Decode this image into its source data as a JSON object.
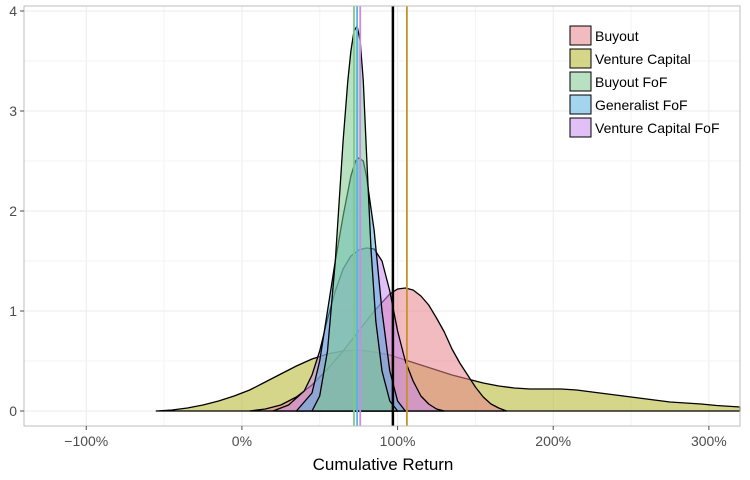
{
  "chart_data": {
    "type": "area",
    "title": "",
    "xlabel": "Cumulative Return",
    "ylabel": "",
    "xlim": [
      -1.4,
      3.2
    ],
    "ylim": [
      -0.15,
      4.05
    ],
    "x_ticks": [
      {
        "value": -1,
        "label": "−100%"
      },
      {
        "value": 0,
        "label": "0%"
      },
      {
        "value": 1,
        "label": "100%"
      },
      {
        "value": 2,
        "label": "200%"
      },
      {
        "value": 3,
        "label": "300%"
      }
    ],
    "y_ticks": [
      {
        "value": 0,
        "label": "0"
      },
      {
        "value": 1,
        "label": "1"
      },
      {
        "value": 2,
        "label": "2"
      },
      {
        "value": 3,
        "label": "3"
      },
      {
        "value": 4,
        "label": "4"
      }
    ],
    "grid": true,
    "legend_position": "top-right",
    "series": [
      {
        "name": "Venture Capital",
        "color": "#b5b52a",
        "x": [
          -0.55,
          -0.45,
          -0.35,
          -0.25,
          -0.15,
          -0.05,
          0.05,
          0.15,
          0.25,
          0.35,
          0.45,
          0.55,
          0.65,
          0.75,
          0.85,
          0.95,
          1.05,
          1.15,
          1.25,
          1.35,
          1.45,
          1.55,
          1.65,
          1.75,
          1.85,
          1.95,
          2.05,
          2.15,
          2.25,
          2.35,
          2.45,
          2.55,
          2.65,
          2.75,
          2.85,
          2.95,
          3.05,
          3.15,
          3.2
        ],
        "y": [
          0,
          0.01,
          0.03,
          0.06,
          0.1,
          0.15,
          0.21,
          0.29,
          0.37,
          0.45,
          0.52,
          0.57,
          0.6,
          0.61,
          0.59,
          0.56,
          0.51,
          0.46,
          0.41,
          0.36,
          0.32,
          0.28,
          0.25,
          0.23,
          0.22,
          0.22,
          0.22,
          0.21,
          0.19,
          0.17,
          0.15,
          0.13,
          0.11,
          0.09,
          0.08,
          0.07,
          0.055,
          0.045,
          0.04
        ]
      },
      {
        "name": "Buyout",
        "color": "#e8848a",
        "x": [
          0.05,
          0.15,
          0.25,
          0.35,
          0.45,
          0.55,
          0.65,
          0.75,
          0.85,
          0.95,
          1.0,
          1.05,
          1.1,
          1.15,
          1.2,
          1.25,
          1.3,
          1.35,
          1.4,
          1.45,
          1.5,
          1.55,
          1.6,
          1.65,
          1.7
        ],
        "y": [
          0,
          0.02,
          0.06,
          0.14,
          0.26,
          0.42,
          0.6,
          0.8,
          1.0,
          1.17,
          1.22,
          1.23,
          1.21,
          1.15,
          1.06,
          0.93,
          0.79,
          0.62,
          0.48,
          0.36,
          0.24,
          0.14,
          0.07,
          0.03,
          0
        ]
      },
      {
        "name": "Venture Capital FoF",
        "color": "#c98af0",
        "x": [
          0.2,
          0.3,
          0.4,
          0.45,
          0.5,
          0.55,
          0.6,
          0.65,
          0.7,
          0.75,
          0.8,
          0.85,
          0.9,
          0.95,
          1.0,
          1.05,
          1.1,
          1.15,
          1.2,
          1.25,
          1.3
        ],
        "y": [
          0,
          0.06,
          0.2,
          0.36,
          0.6,
          0.92,
          1.2,
          1.42,
          1.55,
          1.61,
          1.63,
          1.62,
          1.5,
          1.2,
          0.8,
          0.5,
          0.3,
          0.15,
          0.07,
          0.02,
          0
        ]
      },
      {
        "name": "Generalist FoF",
        "color": "#5ab3e0",
        "x": [
          0.35,
          0.45,
          0.5,
          0.55,
          0.6,
          0.65,
          0.7,
          0.73,
          0.75,
          0.78,
          0.8,
          0.85,
          0.9,
          0.95,
          1.0,
          1.05
        ],
        "y": [
          0,
          0.18,
          0.5,
          1.0,
          1.5,
          1.95,
          2.35,
          2.5,
          2.53,
          2.5,
          2.35,
          1.8,
          1.0,
          0.4,
          0.1,
          0
        ]
      },
      {
        "name": "Buyout FoF",
        "color": "#7dc88e",
        "x": [
          0.45,
          0.5,
          0.55,
          0.6,
          0.65,
          0.68,
          0.7,
          0.72,
          0.74,
          0.76,
          0.78,
          0.8,
          0.83,
          0.86,
          0.9,
          0.95,
          1.0
        ],
        "y": [
          0,
          0.15,
          0.6,
          1.5,
          2.7,
          3.3,
          3.6,
          3.8,
          3.85,
          3.7,
          3.3,
          2.6,
          1.6,
          0.9,
          0.4,
          0.1,
          0
        ]
      }
    ],
    "legend_entries": [
      "Buyout",
      "Venture Capital",
      "Buyout FoF",
      "Generalist FoF",
      "Venture Capital FoF"
    ],
    "legend_colors": [
      "#e8848a",
      "#b5b52a",
      "#7dc88e",
      "#5ab3e0",
      "#c98af0"
    ],
    "vertical_lines": [
      {
        "name": "Buyout FoF mean",
        "x": 0.72,
        "color": "#7dc88e"
      },
      {
        "name": "Generalist FoF mean",
        "x": 0.74,
        "color": "#5ab3e0"
      },
      {
        "name": "Venture Capital FoF mean",
        "x": 0.76,
        "color": "#c98af0"
      },
      {
        "name": "Reference 100% (black)",
        "x": 0.97,
        "color": "#000000"
      },
      {
        "name": "Venture Capital mean",
        "x": 1.06,
        "color": "#c8922a"
      }
    ]
  }
}
